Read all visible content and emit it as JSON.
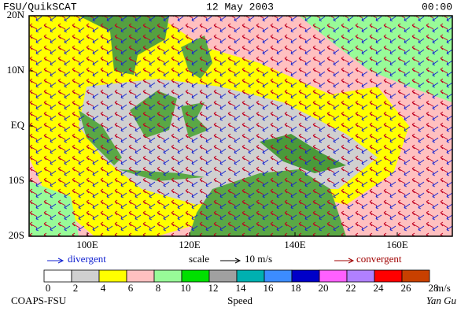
{
  "header": {
    "left": "FSU/QuikSCAT",
    "center": "12 May 2003",
    "right": "00:00"
  },
  "latitude_labels": [
    "20N",
    "10N",
    "EQ",
    "10S",
    "20S"
  ],
  "longitude_labels": [
    "100E",
    "120E",
    "140E",
    "160E"
  ],
  "legend": {
    "divergent": "divergent",
    "scale": "scale",
    "scale_value": "10 m/s",
    "convergent": "convergent"
  },
  "colorbar": {
    "labels": [
      0,
      2,
      4,
      6,
      8,
      10,
      12,
      14,
      16,
      18,
      20,
      22,
      24,
      26,
      28
    ],
    "colors": [
      "#ffffff",
      "#d0d0d0",
      "#ffff00",
      "#ffc0c0",
      "#98fb98",
      "#00e000",
      "#a0a0a0",
      "#00b0b0",
      "#3c8cff",
      "#0000c8",
      "#ff60ff",
      "#b080ff",
      "#ff0000",
      "#c84000",
      "#000000"
    ],
    "unit": "m/s",
    "title": "Speed"
  },
  "footer": {
    "left": "COAPS-FSU",
    "right": "Yan Gu"
  }
}
